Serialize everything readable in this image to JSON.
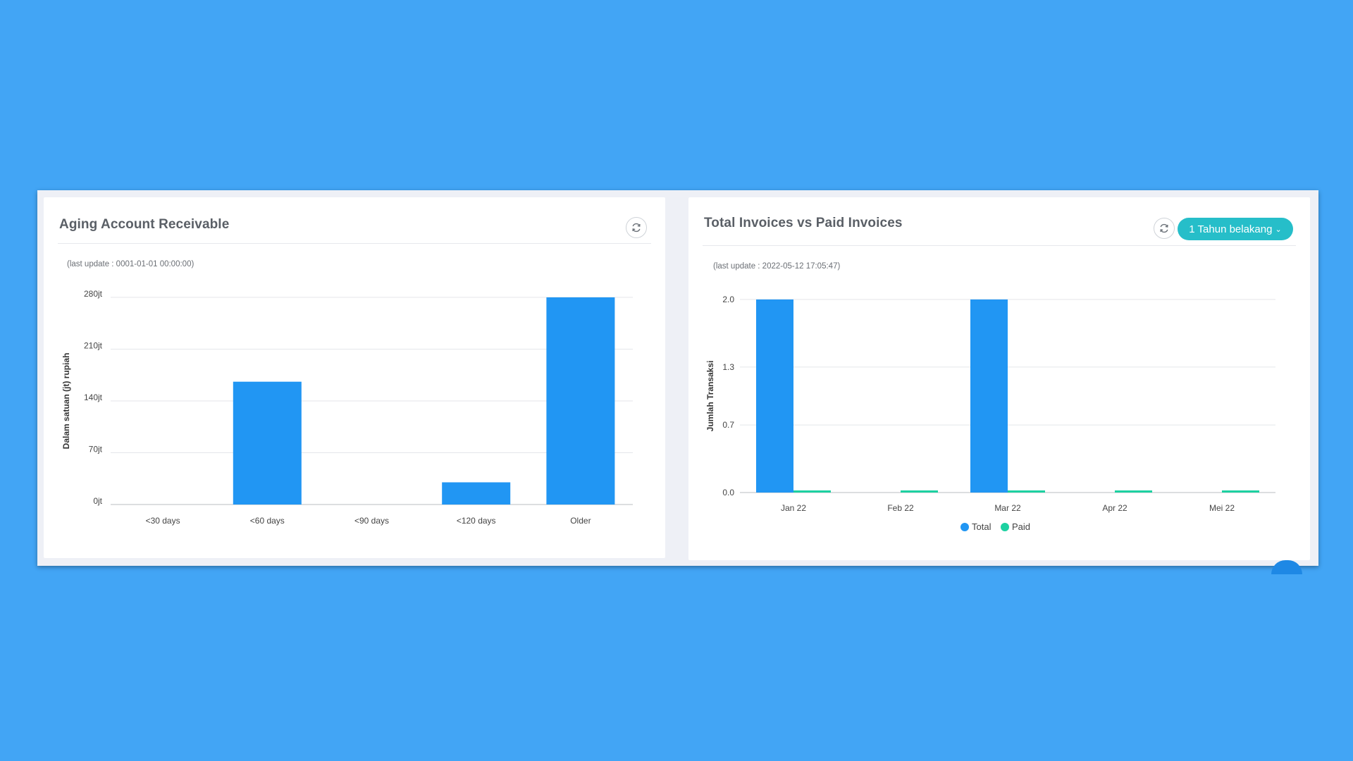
{
  "left_card": {
    "title": "Aging Account Receivable",
    "last_update": "(last update : 0001-01-01 00:00:00)",
    "refresh_icon": "refresh-icon"
  },
  "right_card": {
    "title": "Total Invoices vs Paid Invoices",
    "last_update": "(last update : 2022-05-12 17:05:47)",
    "refresh_icon": "refresh-icon",
    "range_select": "1 Tahun belakang",
    "range_icon": "chevron-down-icon"
  },
  "chart_data": [
    {
      "type": "bar",
      "categories": [
        "<30 days",
        "<60 days",
        "<90 days",
        "<120 days",
        "Older"
      ],
      "values": [
        0,
        166,
        0,
        30,
        280
      ],
      "ylabel": "Dalam satuan (jt) rupiah",
      "yticks": [
        "0jt",
        "70jt",
        "140jt",
        "210jt",
        "280jt"
      ],
      "ylim": [
        0,
        280
      ],
      "grid": true,
      "colors": {
        "bar": "#2196f3"
      }
    },
    {
      "type": "bar",
      "categories": [
        "Jan 22",
        "Feb 22",
        "Mar 22",
        "Apr 22",
        "Mei 22"
      ],
      "series": [
        {
          "name": "Total",
          "values": [
            2,
            0,
            2,
            0,
            0
          ],
          "color": "#2196f3"
        },
        {
          "name": "Paid",
          "values": [
            0,
            0,
            0,
            0,
            0
          ],
          "color": "#1dd1a1"
        }
      ],
      "ylabel": "Jumlah Transaksi",
      "yticks": [
        "0.0",
        "0.7",
        "1.3",
        "2.0"
      ],
      "ylim": [
        0,
        2
      ],
      "grid": true,
      "legend": "bottom"
    }
  ]
}
